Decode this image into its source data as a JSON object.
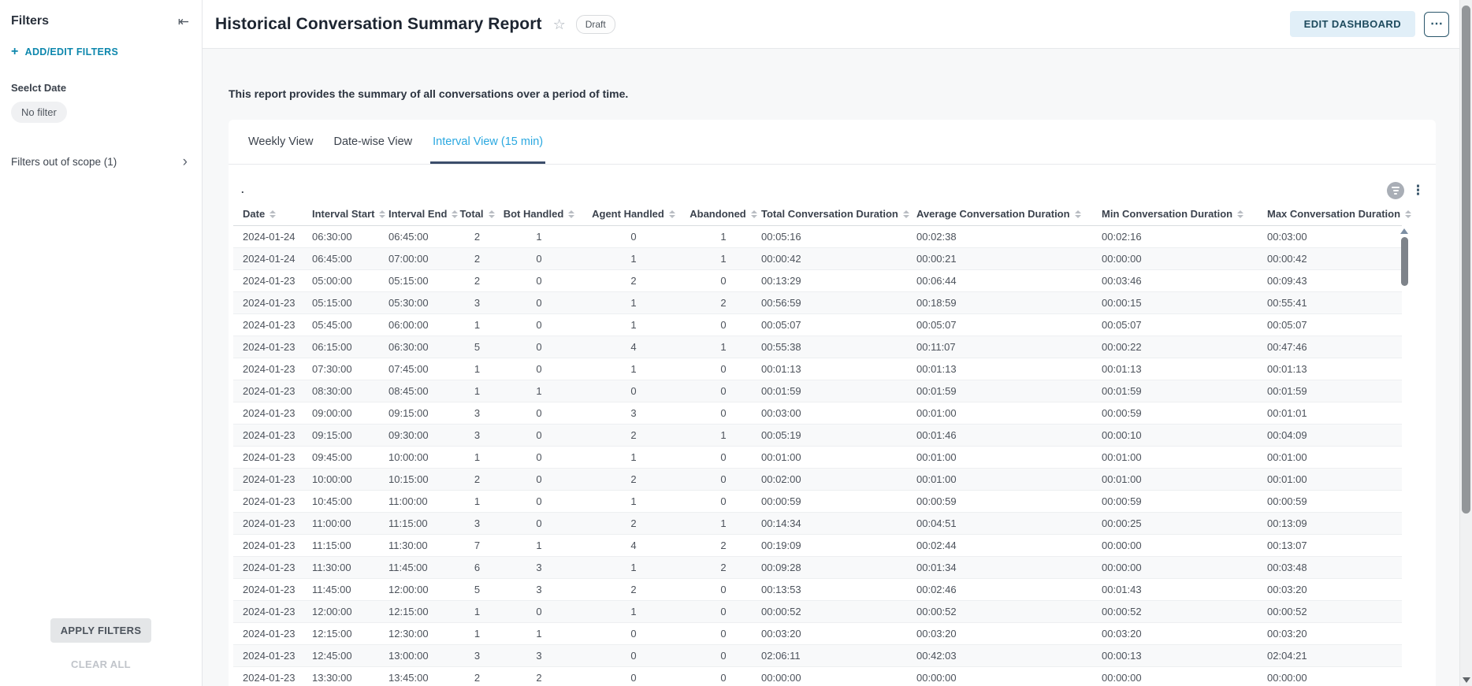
{
  "sidebar": {
    "title": "Filters",
    "add_edit_label": "ADD/EDIT FILTERS",
    "filter_group_label": "Seelct Date",
    "filter_chip": "No filter",
    "out_of_scope_label": "Filters out of scope (1)",
    "apply_label": "APPLY FILTERS",
    "clear_label": "CLEAR ALL"
  },
  "header": {
    "title": "Historical Conversation Summary Report",
    "status_badge": "Draft",
    "edit_button": "EDIT DASHBOARD"
  },
  "report": {
    "description": "This report provides the summary of all conversations over a period of time.",
    "widget_title": ".",
    "tabs": [
      {
        "label": "Weekly View",
        "active": false
      },
      {
        "label": "Date-wise View",
        "active": false
      },
      {
        "label": "Interval View (15 min)",
        "active": true
      }
    ]
  },
  "icons": {
    "collapse_left": "⇤",
    "plus": "+",
    "chevron_right": "›",
    "star": "☆",
    "ellipsis_h": "⋯",
    "ellipsis_v": "⋮"
  },
  "colors": {
    "accent_teal": "#0d87ad",
    "active_tab_text": "#2aa8e0",
    "tab_underline": "#3c4d6b",
    "edit_button_bg": "#e1eff8",
    "edit_button_text": "#1d4a5d",
    "main_background": "#f7f8f9"
  },
  "table": {
    "columns": [
      "Date",
      "Interval Start",
      "Interval End",
      "Total",
      "Bot Handled",
      "Agent Handled",
      "Abandoned",
      "Total Conversation Duration",
      "Average Conversation Duration",
      "Min Conversation Duration",
      "Max Conversation Duration"
    ],
    "rows": [
      [
        "2024-01-24",
        "06:30:00",
        "06:45:00",
        "2",
        "1",
        "0",
        "1",
        "00:05:16",
        "00:02:38",
        "00:02:16",
        "00:03:00"
      ],
      [
        "2024-01-24",
        "06:45:00",
        "07:00:00",
        "2",
        "0",
        "1",
        "1",
        "00:00:42",
        "00:00:21",
        "00:00:00",
        "00:00:42"
      ],
      [
        "2024-01-23",
        "05:00:00",
        "05:15:00",
        "2",
        "0",
        "2",
        "0",
        "00:13:29",
        "00:06:44",
        "00:03:46",
        "00:09:43"
      ],
      [
        "2024-01-23",
        "05:15:00",
        "05:30:00",
        "3",
        "0",
        "1",
        "2",
        "00:56:59",
        "00:18:59",
        "00:00:15",
        "00:55:41"
      ],
      [
        "2024-01-23",
        "05:45:00",
        "06:00:00",
        "1",
        "0",
        "1",
        "0",
        "00:05:07",
        "00:05:07",
        "00:05:07",
        "00:05:07"
      ],
      [
        "2024-01-23",
        "06:15:00",
        "06:30:00",
        "5",
        "0",
        "4",
        "1",
        "00:55:38",
        "00:11:07",
        "00:00:22",
        "00:47:46"
      ],
      [
        "2024-01-23",
        "07:30:00",
        "07:45:00",
        "1",
        "0",
        "1",
        "0",
        "00:01:13",
        "00:01:13",
        "00:01:13",
        "00:01:13"
      ],
      [
        "2024-01-23",
        "08:30:00",
        "08:45:00",
        "1",
        "1",
        "0",
        "0",
        "00:01:59",
        "00:01:59",
        "00:01:59",
        "00:01:59"
      ],
      [
        "2024-01-23",
        "09:00:00",
        "09:15:00",
        "3",
        "0",
        "3",
        "0",
        "00:03:00",
        "00:01:00",
        "00:00:59",
        "00:01:01"
      ],
      [
        "2024-01-23",
        "09:15:00",
        "09:30:00",
        "3",
        "0",
        "2",
        "1",
        "00:05:19",
        "00:01:46",
        "00:00:10",
        "00:04:09"
      ],
      [
        "2024-01-23",
        "09:45:00",
        "10:00:00",
        "1",
        "0",
        "1",
        "0",
        "00:01:00",
        "00:01:00",
        "00:01:00",
        "00:01:00"
      ],
      [
        "2024-01-23",
        "10:00:00",
        "10:15:00",
        "2",
        "0",
        "2",
        "0",
        "00:02:00",
        "00:01:00",
        "00:01:00",
        "00:01:00"
      ],
      [
        "2024-01-23",
        "10:45:00",
        "11:00:00",
        "1",
        "0",
        "1",
        "0",
        "00:00:59",
        "00:00:59",
        "00:00:59",
        "00:00:59"
      ],
      [
        "2024-01-23",
        "11:00:00",
        "11:15:00",
        "3",
        "0",
        "2",
        "1",
        "00:14:34",
        "00:04:51",
        "00:00:25",
        "00:13:09"
      ],
      [
        "2024-01-23",
        "11:15:00",
        "11:30:00",
        "7",
        "1",
        "4",
        "2",
        "00:19:09",
        "00:02:44",
        "00:00:00",
        "00:13:07"
      ],
      [
        "2024-01-23",
        "11:30:00",
        "11:45:00",
        "6",
        "3",
        "1",
        "2",
        "00:09:28",
        "00:01:34",
        "00:00:00",
        "00:03:48"
      ],
      [
        "2024-01-23",
        "11:45:00",
        "12:00:00",
        "5",
        "3",
        "2",
        "0",
        "00:13:53",
        "00:02:46",
        "00:01:43",
        "00:03:20"
      ],
      [
        "2024-01-23",
        "12:00:00",
        "12:15:00",
        "1",
        "0",
        "1",
        "0",
        "00:00:52",
        "00:00:52",
        "00:00:52",
        "00:00:52"
      ],
      [
        "2024-01-23",
        "12:15:00",
        "12:30:00",
        "1",
        "1",
        "0",
        "0",
        "00:03:20",
        "00:03:20",
        "00:03:20",
        "00:03:20"
      ],
      [
        "2024-01-23",
        "12:45:00",
        "13:00:00",
        "3",
        "3",
        "0",
        "0",
        "02:06:11",
        "00:42:03",
        "00:00:13",
        "02:04:21"
      ],
      [
        "2024-01-23",
        "13:30:00",
        "13:45:00",
        "2",
        "2",
        "0",
        "0",
        "00:00:00",
        "00:00:00",
        "00:00:00",
        "00:00:00"
      ]
    ]
  }
}
